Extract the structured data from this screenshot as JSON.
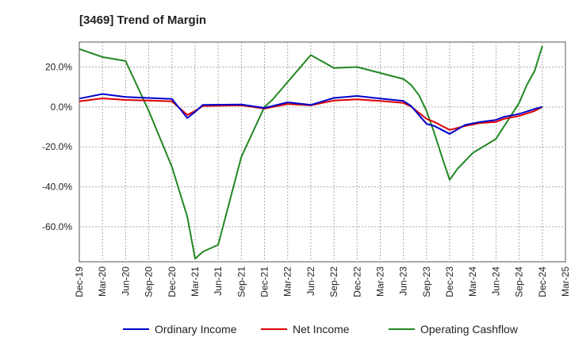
{
  "chart_data": {
    "type": "line",
    "title": "[3469]  Trend of Margin",
    "xlabel": "",
    "ylabel": "",
    "x_ticks": [
      "Dec-19",
      "Mar-20",
      "Jun-20",
      "Sep-20",
      "Dec-20",
      "Mar-21",
      "Jun-21",
      "Sep-21",
      "Dec-21",
      "Mar-22",
      "Jun-22",
      "Sep-22",
      "Dec-22",
      "Mar-23",
      "Jun-23",
      "Sep-23",
      "Dec-23",
      "Mar-24",
      "Jun-24",
      "Sep-24",
      "Dec-24",
      "Mar-25"
    ],
    "y_ticks": [
      20,
      0,
      -20,
      -40,
      -60
    ],
    "y_tick_labels": [
      "20.0%",
      "0.0%",
      "-20.0%",
      "-40.0%",
      "-60.0%"
    ],
    "ylim": [
      -77.5,
      32.5
    ],
    "grid": true,
    "legend_position": "bottom",
    "series": [
      {
        "name": "Ordinary Income",
        "color": "#0000cc",
        "points": [
          [
            "Dec-19",
            4.2
          ],
          [
            "Mar-20",
            6.5
          ],
          [
            "Jun-20",
            5.0
          ],
          [
            "Sep-20",
            4.5
          ],
          [
            "Dec-20",
            4.0
          ],
          [
            "Feb-21",
            -5.5
          ],
          [
            "Mar-21",
            -2.5
          ],
          [
            "Apr-21",
            1.0
          ],
          [
            "Sep-21",
            1.2
          ],
          [
            "Dec-21",
            -0.5
          ],
          [
            "Mar-22",
            2.3
          ],
          [
            "Jun-22",
            1.0
          ],
          [
            "Sep-22",
            4.5
          ],
          [
            "Dec-22",
            5.5
          ],
          [
            "Mar-23",
            4.2
          ],
          [
            "Jun-23",
            3.0
          ],
          [
            "Jul-23",
            0.5
          ],
          [
            "Sep-23",
            -8.5
          ],
          [
            "Oct-23",
            -9.5
          ],
          [
            "Dec-23",
            -13.5
          ],
          [
            "Feb-24",
            -9.0
          ],
          [
            "Apr-24",
            -7.5
          ],
          [
            "Jun-24",
            -6.5
          ],
          [
            "Jul-24",
            -5.0
          ],
          [
            "Sep-24",
            -3.5
          ],
          [
            "Nov-24",
            -1.0
          ],
          [
            "Dec-24",
            0.0
          ]
        ]
      },
      {
        "name": "Net Income",
        "color": "#dd0000",
        "points": [
          [
            "Dec-19",
            2.8
          ],
          [
            "Mar-20",
            4.3
          ],
          [
            "Jun-20",
            3.5
          ],
          [
            "Sep-20",
            3.2
          ],
          [
            "Dec-20",
            2.8
          ],
          [
            "Feb-21",
            -4.0
          ],
          [
            "Mar-21",
            -2.0
          ],
          [
            "Apr-21",
            0.5
          ],
          [
            "Sep-21",
            0.8
          ],
          [
            "Dec-21",
            -0.8
          ],
          [
            "Mar-22",
            1.5
          ],
          [
            "Jun-22",
            0.8
          ],
          [
            "Sep-22",
            3.2
          ],
          [
            "Dec-22",
            3.8
          ],
          [
            "Mar-23",
            3.0
          ],
          [
            "Jun-23",
            2.0
          ],
          [
            "Jul-23",
            0.2
          ],
          [
            "Sep-23",
            -6.0
          ],
          [
            "Oct-23",
            -7.5
          ],
          [
            "Dec-23",
            -11.5
          ],
          [
            "Feb-24",
            -9.5
          ],
          [
            "Apr-24",
            -8.0
          ],
          [
            "Jun-24",
            -7.5
          ],
          [
            "Jul-24",
            -6.0
          ],
          [
            "Sep-24",
            -4.5
          ],
          [
            "Nov-24",
            -2.0
          ],
          [
            "Dec-24",
            0.0
          ]
        ]
      },
      {
        "name": "Operating Cashflow",
        "color": "#228822",
        "points": [
          [
            "Dec-19",
            29.0
          ],
          [
            "Mar-20",
            25.0
          ],
          [
            "Jun-20",
            23.0
          ],
          [
            "Sep-20",
            -2.0
          ],
          [
            "Dec-20",
            -30.0
          ],
          [
            "Feb-21",
            -55.0
          ],
          [
            "Mar-21",
            -76.0
          ],
          [
            "Apr-21",
            -72.5
          ],
          [
            "Jun-21",
            -69.0
          ],
          [
            "Sep-21",
            -25.0
          ],
          [
            "Dec-21",
            0.0
          ],
          [
            "Jan-22",
            3.5
          ],
          [
            "Jun-22",
            26.0
          ],
          [
            "Sep-22",
            19.5
          ],
          [
            "Dec-22",
            20.0
          ],
          [
            "Mar-23",
            17.0
          ],
          [
            "Jun-23",
            14.0
          ],
          [
            "Jul-23",
            11.0
          ],
          [
            "Aug-23",
            6.0
          ],
          [
            "Sep-23",
            -2.0
          ],
          [
            "Oct-23",
            -13.0
          ],
          [
            "Nov-23",
            -25.0
          ],
          [
            "Dec-23",
            -36.5
          ],
          [
            "Jan-24",
            -31.0
          ],
          [
            "Mar-24",
            -23.0
          ],
          [
            "Jun-24",
            -16.0
          ],
          [
            "Sep-24",
            2.0
          ],
          [
            "Oct-24",
            11.0
          ],
          [
            "Nov-24",
            18.0
          ],
          [
            "Dec-24",
            30.5
          ]
        ]
      }
    ]
  }
}
